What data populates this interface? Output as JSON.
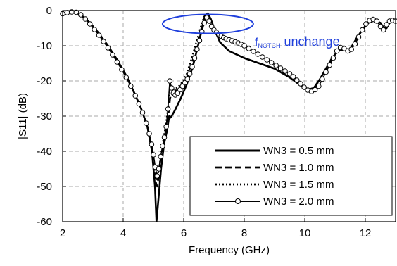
{
  "chart_data": {
    "type": "line",
    "title": "",
    "xlabel": "Frequency (GHz)",
    "ylabel": "|S11| (dB)",
    "xlim": [
      2,
      13
    ],
    "ylim": [
      -60,
      0
    ],
    "xticks": [
      2,
      4,
      6,
      8,
      10,
      12
    ],
    "yticks": [
      0,
      -10,
      -20,
      -30,
      -40,
      -50,
      -60
    ],
    "grid": true,
    "legend_position": "bottom-right",
    "annotation": {
      "text_sub": "NOTCH",
      "text_main_prefix": "f",
      "text_main_suffix": " unchange",
      "color": "#1f3fdc",
      "ellipse_center": [
        6.8,
        -3.8
      ],
      "ellipse_radius": [
        1.5,
        2.7
      ],
      "text_anchor": [
        8.35,
        -10.0
      ]
    },
    "series": [
      {
        "name": "WN3 = 0.5 mm",
        "style": "solid",
        "x": [
          2.0,
          2.2,
          2.4,
          2.6,
          2.9,
          3.2,
          3.5,
          3.8,
          4.1,
          4.4,
          4.6,
          4.8,
          4.95,
          5.05,
          5.1,
          5.15,
          5.25,
          5.35,
          5.45,
          5.52,
          5.55,
          5.6,
          5.7,
          5.9,
          6.1,
          6.3,
          6.5,
          6.6,
          6.7,
          6.8,
          6.9,
          7.0,
          7.2,
          7.5,
          8.0,
          8.5,
          9.0,
          9.5,
          9.9,
          10.1,
          10.3,
          10.5,
          10.7,
          10.9,
          11.1,
          11.3,
          11.5,
          11.7,
          11.9,
          12.1,
          12.3,
          12.5,
          12.6,
          12.7,
          12.8,
          12.9,
          13.0
        ],
        "y": [
          -1.0,
          -0.6,
          -0.5,
          -1.2,
          -3.5,
          -6.5,
          -10.0,
          -14.0,
          -18.5,
          -24.0,
          -28.0,
          -33.0,
          -40.0,
          -50.0,
          -60.0,
          -55.0,
          -45.0,
          -38.0,
          -34.0,
          -30.0,
          -30.5,
          -30.0,
          -28.5,
          -25.0,
          -21.0,
          -16.0,
          -9.0,
          -5.0,
          -1.5,
          -0.8,
          -2.5,
          -5.0,
          -9.0,
          -11.5,
          -13.5,
          -15.0,
          -16.5,
          -19.0,
          -21.5,
          -22.5,
          -22.0,
          -19.5,
          -16.5,
          -13.5,
          -11.5,
          -11.0,
          -11.0,
          -8.0,
          -5.5,
          -3.5,
          -2.8,
          -3.5,
          -4.8,
          -5.0,
          -3.5,
          -3.0,
          -3.0
        ]
      },
      {
        "name": "WN3 = 1.0 mm",
        "style": "dashed",
        "x": [
          2.0,
          2.2,
          2.4,
          2.6,
          2.9,
          3.2,
          3.5,
          3.8,
          4.1,
          4.4,
          4.6,
          4.8,
          4.95,
          5.05,
          5.12,
          5.2,
          5.3,
          5.4,
          5.48,
          5.55,
          5.6,
          5.7,
          5.9,
          6.1,
          6.3,
          6.5,
          6.6,
          6.7,
          6.8,
          6.9,
          7.0,
          7.2,
          7.5,
          8.0,
          8.5,
          9.0,
          9.5,
          9.9,
          10.1,
          10.3,
          10.5,
          10.7,
          10.9,
          11.1,
          11.3,
          11.5,
          11.7,
          11.9,
          12.1,
          12.3,
          12.5,
          12.6,
          12.7,
          12.8,
          12.9,
          13.0
        ],
        "y": [
          -1.0,
          -0.6,
          -0.5,
          -1.2,
          -3.5,
          -6.5,
          -10.0,
          -14.0,
          -18.5,
          -24.0,
          -28.0,
          -33.0,
          -40.0,
          -48.0,
          -50.0,
          -46.0,
          -40.0,
          -35.0,
          -31.0,
          -25.0,
          -23.5,
          -23.0,
          -21.5,
          -19.0,
          -14.0,
          -8.0,
          -4.5,
          -1.8,
          -1.0,
          -2.5,
          -5.0,
          -9.0,
          -11.5,
          -13.5,
          -15.0,
          -16.5,
          -19.0,
          -21.5,
          -22.5,
          -22.0,
          -19.5,
          -16.5,
          -13.5,
          -11.5,
          -11.0,
          -11.0,
          -8.0,
          -5.5,
          -3.5,
          -2.8,
          -3.5,
          -4.8,
          -5.0,
          -3.5,
          -3.0,
          -3.0
        ]
      },
      {
        "name": "WN3 = 1.5 mm",
        "style": "dotted",
        "x": [
          2.0,
          2.2,
          2.4,
          2.6,
          2.9,
          3.2,
          3.5,
          3.8,
          4.1,
          4.4,
          4.6,
          4.8,
          4.95,
          5.05,
          5.12,
          5.2,
          5.3,
          5.4,
          5.48,
          5.55,
          5.6,
          5.7,
          5.9,
          6.1,
          6.3,
          6.5,
          6.6,
          6.7,
          6.8,
          6.9,
          7.0,
          7.2,
          7.5,
          8.0,
          8.5,
          9.0,
          9.5,
          9.9,
          10.1,
          10.3,
          10.5,
          10.7,
          10.9,
          11.1,
          11.3,
          11.5,
          11.7,
          11.9,
          12.1,
          12.3,
          12.5,
          12.6,
          12.7,
          12.8,
          12.9,
          13.0
        ],
        "y": [
          -1.0,
          -0.6,
          -0.5,
          -1.2,
          -3.5,
          -6.5,
          -10.0,
          -14.0,
          -18.5,
          -24.0,
          -28.0,
          -33.0,
          -40.0,
          -47.0,
          -48.0,
          -44.0,
          -38.0,
          -33.0,
          -28.0,
          -21.0,
          -22.0,
          -22.5,
          -21.0,
          -18.0,
          -12.5,
          -6.5,
          -3.5,
          -1.2,
          -1.0,
          -2.5,
          -5.0,
          -9.0,
          -11.5,
          -13.5,
          -15.0,
          -16.5,
          -19.0,
          -21.5,
          -22.5,
          -22.0,
          -19.5,
          -16.5,
          -13.5,
          -11.5,
          -11.0,
          -11.0,
          -8.0,
          -5.5,
          -3.5,
          -2.8,
          -3.5,
          -4.8,
          -5.0,
          -3.5,
          -3.0,
          -3.0
        ]
      },
      {
        "name": "WN3 = 2.0 mm",
        "style": "solid-marker",
        "x": [
          2.0,
          2.15,
          2.3,
          2.45,
          2.6,
          2.75,
          2.9,
          3.05,
          3.2,
          3.35,
          3.5,
          3.65,
          3.8,
          3.95,
          4.1,
          4.25,
          4.4,
          4.52,
          4.64,
          4.76,
          4.86,
          4.94,
          5.0,
          5.06,
          5.12,
          5.18,
          5.24,
          5.3,
          5.36,
          5.42,
          5.48,
          5.54,
          5.6,
          5.66,
          5.72,
          5.8,
          5.88,
          5.96,
          6.04,
          6.12,
          6.2,
          6.28,
          6.36,
          6.44,
          6.52,
          6.6,
          6.68,
          6.76,
          6.84,
          6.92,
          7.0,
          7.08,
          7.16,
          7.24,
          7.32,
          7.4,
          7.5,
          7.6,
          7.7,
          7.8,
          7.9,
          8.0,
          8.15,
          8.3,
          8.45,
          8.6,
          8.75,
          8.9,
          9.05,
          9.2,
          9.35,
          9.5,
          9.62,
          9.74,
          9.86,
          9.98,
          10.1,
          10.22,
          10.34,
          10.46,
          10.58,
          10.7,
          10.82,
          10.94,
          11.06,
          11.18,
          11.3,
          11.42,
          11.54,
          11.66,
          11.78,
          11.9,
          12.02,
          12.14,
          12.26,
          12.38,
          12.5,
          12.6,
          12.7,
          12.8,
          12.9,
          13.0
        ],
        "y": [
          -0.9,
          -0.6,
          -0.4,
          -0.5,
          -1.2,
          -2.4,
          -3.8,
          -5.4,
          -7.0,
          -8.8,
          -10.6,
          -12.6,
          -14.6,
          -16.8,
          -19.0,
          -21.5,
          -24.2,
          -26.5,
          -29.0,
          -32.0,
          -35.0,
          -38.0,
          -41.0,
          -44.5,
          -47.0,
          -45.0,
          -41.5,
          -38.5,
          -36.0,
          -33.0,
          -28.0,
          -20.0,
          -22.0,
          -23.5,
          -24.0,
          -23.5,
          -22.5,
          -21.5,
          -20.5,
          -19.5,
          -18.0,
          -16.0,
          -13.5,
          -11.0,
          -8.5,
          -6.0,
          -3.5,
          -2.0,
          -3.0,
          -4.5,
          -5.5,
          -6.2,
          -6.8,
          -7.3,
          -7.7,
          -8.0,
          -8.3,
          -8.6,
          -8.9,
          -9.2,
          -9.6,
          -10.0,
          -10.8,
          -11.6,
          -12.4,
          -13.2,
          -14.0,
          -14.8,
          -15.6,
          -16.4,
          -17.2,
          -18.0,
          -18.8,
          -19.8,
          -20.8,
          -21.8,
          -22.6,
          -23.0,
          -22.5,
          -21.5,
          -19.5,
          -17.5,
          -15.5,
          -13.5,
          -11.5,
          -10.5,
          -10.8,
          -11.5,
          -11.0,
          -9.5,
          -7.5,
          -5.5,
          -3.8,
          -2.8,
          -2.5,
          -3.0,
          -4.5,
          -5.5,
          -4.0,
          -3.0,
          -2.8,
          -3.0
        ]
      }
    ]
  }
}
